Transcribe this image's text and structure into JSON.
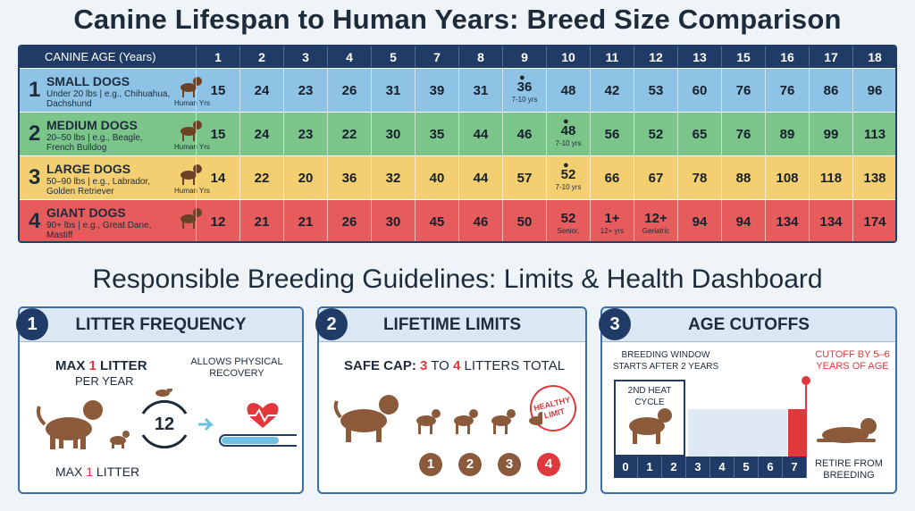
{
  "title": "Canine Lifespan to Human Years: Breed Size Comparison",
  "table": {
    "header_label": "CANINE AGE (Years)",
    "ages": [
      "1",
      "2",
      "3",
      "4",
      "5",
      "7",
      "8",
      "9",
      "10",
      "11",
      "12",
      "13",
      "15",
      "16",
      "17",
      "18"
    ],
    "rows": [
      {
        "num": "1",
        "name": "SMALL DOGS",
        "desc": "Under 20 lbs | e.g., Chihuahua, Dachshund",
        "unit": "Human Yrs",
        "color": "#8ec3e6",
        "values": [
          "15",
          "24",
          "23",
          "26",
          "31",
          "39",
          "31",
          "36",
          "48",
          "42",
          "53",
          "60",
          "76",
          "76",
          "86",
          "96"
        ],
        "notes": [
          "",
          "",
          "",
          "",
          "",
          "",
          "",
          "7-10 yrs",
          "",
          "",
          "",
          "",
          "",
          "",
          "",
          ""
        ]
      },
      {
        "num": "2",
        "name": "MEDIUM DOGS",
        "desc": "20–50 lbs | e.g., Beagle, French Bulldog",
        "unit": "Human Yrs",
        "color": "#7cc58a",
        "values": [
          "15",
          "24",
          "23",
          "22",
          "30",
          "35",
          "44",
          "46",
          "48",
          "56",
          "52",
          "65",
          "76",
          "89",
          "99",
          "113"
        ],
        "notes": [
          "",
          "",
          "",
          "",
          "",
          "",
          "",
          "",
          "7-10 yrs",
          "",
          "",
          "",
          "",
          "",
          "",
          ""
        ]
      },
      {
        "num": "3",
        "name": "LARGE DOGS",
        "desc": "50–90 lbs | e.g., Labrador, Golden Retriever",
        "unit": "Human Yrs",
        "color": "#f4cf72",
        "values": [
          "14",
          "22",
          "20",
          "36",
          "32",
          "40",
          "44",
          "57",
          "52",
          "66",
          "67",
          "78",
          "88",
          "108",
          "118",
          "138"
        ],
        "notes": [
          "",
          "",
          "",
          "",
          "",
          "",
          "",
          "",
          "7-10 yrs",
          "",
          "",
          "",
          "",
          "",
          "",
          ""
        ]
      },
      {
        "num": "4",
        "name": "GIANT DOGS",
        "desc": "90+ lbs | e.g., Great Dane, Mastiff",
        "unit": "",
        "color": "#e65c5c",
        "values": [
          "12",
          "21",
          "21",
          "26",
          "30",
          "45",
          "46",
          "50",
          "52",
          "1+",
          "12+",
          "94",
          "94",
          "134",
          "134",
          "174"
        ],
        "notes": [
          "",
          "",
          "",
          "",
          "",
          "",
          "",
          "",
          "Senior,",
          "12+ yrs",
          "Geriatric",
          "",
          "",
          "",
          "",
          ""
        ]
      }
    ]
  },
  "section_title": "Responsible Breeding Guidelines: Limits & Health Dashboard",
  "panels": {
    "p1": {
      "num": "1",
      "title": "LITTER FREQUENCY",
      "max_a": "MAX",
      "max_n": "1",
      "max_b": "LITTER",
      "per_year": "PER YEAR",
      "cycle_num": "12",
      "recovery": "ALLOWS PHYSICAL RECOVERY",
      "bottom_a": "MAX",
      "bottom_n": "1",
      "bottom_b": "LITTER"
    },
    "p2": {
      "num": "2",
      "title": "LIFETIME LIMITS",
      "cap_label": "SAFE CAP:",
      "cap_from": "3",
      "cap_to_word": "TO",
      "cap_to": "4",
      "cap_rest": "LITTERS TOTAL",
      "stamp": "HEALTHY LIMIT",
      "counts": [
        "1",
        "2",
        "3",
        "4"
      ]
    },
    "p3": {
      "num": "3",
      "title": "AGE CUTOFFS",
      "window": "BREEDING WINDOW STARTS AFTER 2 YEARS",
      "cutoff": "CUTOFF BY 5–6 YEARS OF AGE",
      "heat": "2ND HEAT CYCLE",
      "years": [
        "0",
        "1",
        "2",
        "3",
        "4",
        "5",
        "6",
        "7"
      ],
      "retire": "RETIRE FROM BREEDING"
    }
  },
  "colors": {
    "navy": "#1f3b66",
    "accent_red": "#e0383d",
    "dog_brown": "#8a5a3b"
  }
}
